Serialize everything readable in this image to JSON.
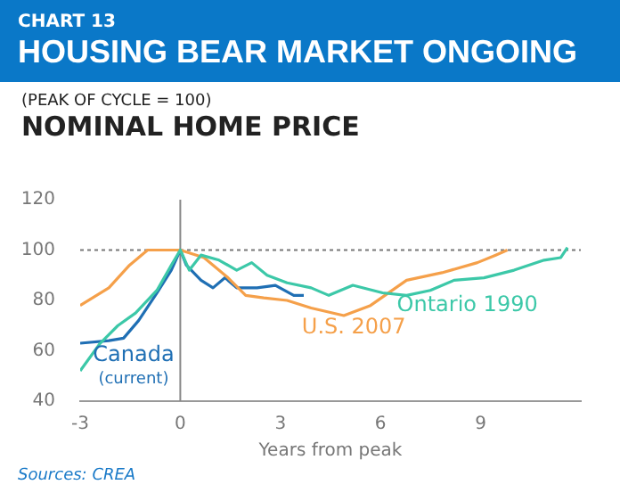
{
  "chart_data": {
    "type": "line",
    "title": "HOUSING BEAR MARKET ONGOING",
    "subtitle": "NOMINAL HOME PRICE",
    "ylabel": "(PEAK OF CYCLE = 100)",
    "xlabel": "Years from peak",
    "annotations": [
      "CHART 13",
      "Sources: CREA"
    ],
    "xlim": [
      -3,
      12
    ],
    "xticks": [
      -3,
      0,
      3,
      6,
      9
    ],
    "ylim": [
      40,
      120
    ],
    "yticks": [
      40,
      60,
      80,
      100,
      120
    ],
    "grid": false,
    "legend": false,
    "marker": "none",
    "line_style": "solid",
    "ref_lines": [
      {
        "axis": "y",
        "value": 100,
        "color": "#777777",
        "line_style": "dotted"
      },
      {
        "axis": "x",
        "value": 0,
        "color": "#888888",
        "line_style": "solid"
      }
    ],
    "series": [
      {
        "name": "Ontario 1990",
        "color": "#3cc8a8",
        "x": [
          -3,
          -2.4,
          -1.87,
          -1.34,
          -0.7,
          -0.27,
          0,
          0.27,
          0.62,
          1.16,
          1.69,
          2.14,
          2.6,
          3.2,
          3.92,
          4.45,
          5.17,
          6.06,
          6.78,
          7.49,
          8.2,
          9.1,
          10,
          10.9,
          11.4,
          11.6
        ],
        "values": [
          52,
          63,
          70,
          75,
          84,
          94,
          100,
          92,
          98,
          96,
          92,
          95,
          90,
          87,
          85,
          82,
          86,
          83,
          82,
          84,
          88,
          89,
          92,
          96,
          97,
          101
        ]
      },
      {
        "name": "U.S. 2007",
        "color": "#f5a04a",
        "x": [
          -3,
          -2.14,
          -1.52,
          -0.98,
          -0.36,
          0,
          0.71,
          1.43,
          1.96,
          2.5,
          3.2,
          3.92,
          4.9,
          5.7,
          6.78,
          7.84,
          8.9,
          9.45,
          9.8
        ],
        "values": [
          78,
          85,
          94,
          100,
          100,
          100,
          97,
          89,
          82,
          81,
          80,
          77,
          74,
          78,
          88,
          91,
          95,
          98,
          100
        ]
      },
      {
        "name": "Canada (current)",
        "color": "#1f6fb4",
        "x": [
          -3,
          -2.14,
          -1.7,
          -1.25,
          -0.7,
          -0.27,
          0,
          0.18,
          0.62,
          0.98,
          1.34,
          1.69,
          2.3,
          2.85,
          3.4,
          3.7
        ],
        "values": [
          63,
          64,
          65,
          72,
          83,
          92,
          100,
          94,
          88,
          85,
          89,
          85,
          85,
          86,
          82,
          82
        ]
      }
    ]
  }
}
